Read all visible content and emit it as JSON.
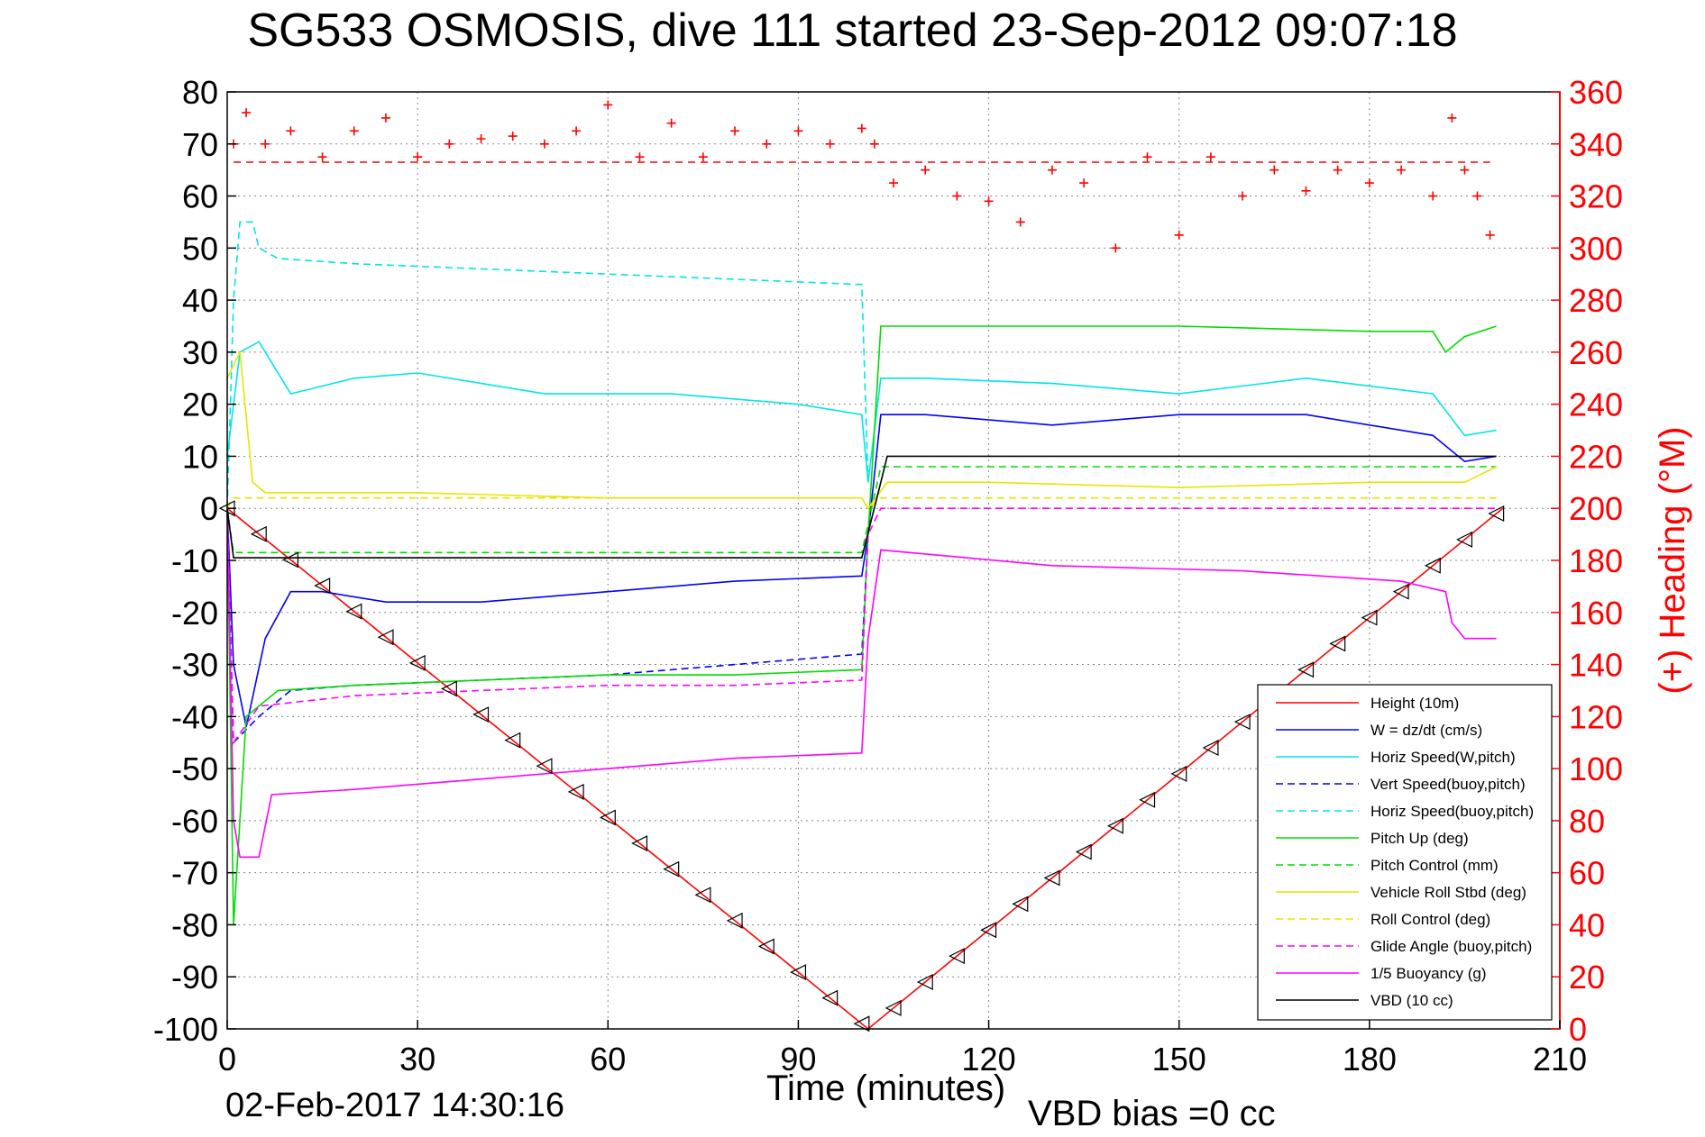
{
  "chart_data": {
    "type": "line",
    "title": "SG533 OSMOSIS, dive 111 started 23-Sep-2012 09:07:18",
    "xlabel": "Time (minutes)",
    "ylabel_right": "(+) Heading (°M)",
    "footer_date": "02-Feb-2017 14:30:16",
    "footer_vbd": "VBD bias =0 cc",
    "xlim": [
      0,
      210
    ],
    "ylim": [
      -100,
      80
    ],
    "y2lim": [
      0,
      360
    ],
    "xticks": [
      0,
      30,
      60,
      90,
      120,
      150,
      180,
      210
    ],
    "yticks": [
      -100,
      -90,
      -80,
      -70,
      -60,
      -50,
      -40,
      -30,
      -20,
      -10,
      0,
      10,
      20,
      30,
      40,
      50,
      60,
      70,
      80
    ],
    "y2ticks": [
      0,
      20,
      40,
      60,
      80,
      100,
      120,
      140,
      160,
      180,
      200,
      220,
      240,
      260,
      280,
      300,
      320,
      340,
      360
    ],
    "grid": true,
    "legend_position": "lower-right",
    "series": [
      {
        "name": "Height (10m)",
        "color": "#ff0000",
        "style": "solid",
        "x": [
          0,
          101,
          201
        ],
        "y": [
          0,
          -100,
          0
        ]
      },
      {
        "name": "W = dz/dt (cm/s)",
        "color": "#0000ff",
        "style": "solid",
        "x": [
          0,
          1,
          3,
          6,
          10,
          15,
          25,
          40,
          60,
          80,
          100,
          101,
          103,
          110,
          130,
          150,
          170,
          190,
          195,
          200
        ],
        "y": [
          0,
          -30,
          -42,
          -25,
          -16,
          -16,
          -18,
          -18,
          -16,
          -14,
          -13,
          -5,
          18,
          18,
          16,
          18,
          18,
          14,
          9,
          10
        ]
      },
      {
        "name": "Horiz Speed(W,pitch)",
        "color": "#00e5e5",
        "style": "solid",
        "x": [
          0,
          2,
          5,
          10,
          20,
          30,
          50,
          70,
          90,
          100,
          101,
          103,
          110,
          130,
          150,
          170,
          190,
          195,
          200
        ],
        "y": [
          10,
          30,
          32,
          22,
          25,
          26,
          22,
          22,
          20,
          18,
          5,
          25,
          25,
          24,
          22,
          25,
          22,
          14,
          15
        ]
      },
      {
        "name": "Vert Speed(buoy,pitch)",
        "color": "#0000ff",
        "style": "dashed",
        "x": [
          0,
          1,
          5,
          10,
          20,
          40,
          60,
          80,
          100,
          101
        ],
        "y": [
          0,
          -45,
          -40,
          -35,
          -34,
          -33,
          -32,
          -30,
          -28,
          -5
        ]
      },
      {
        "name": "Horiz Speed(buoy,pitch)",
        "color": "#00e5e5",
        "style": "dashed",
        "x": [
          0,
          1,
          2,
          4,
          5,
          8,
          20,
          40,
          60,
          80,
          100,
          101
        ],
        "y": [
          0,
          40,
          55,
          55,
          50,
          48,
          47,
          46,
          45,
          44,
          43,
          5
        ]
      },
      {
        "name": "Pitch Up (deg)",
        "color": "#00dd00",
        "style": "solid",
        "x": [
          0,
          1,
          3,
          8,
          20,
          40,
          60,
          80,
          100,
          101,
          103,
          120,
          150,
          180,
          190,
          192,
          195,
          200
        ],
        "y": [
          0,
          -80,
          -40,
          -35,
          -34,
          -33,
          -32,
          -32,
          -31,
          -5,
          35,
          35,
          35,
          34,
          34,
          30,
          33,
          35
        ]
      },
      {
        "name": "Pitch Control (mm)",
        "color": "#00dd00",
        "style": "dashed",
        "x": [
          0,
          1,
          100,
          103,
          200
        ],
        "y": [
          0,
          -8.5,
          -8.5,
          8,
          8
        ]
      },
      {
        "name": "Vehicle Roll Stbd (deg)",
        "color": "#e5e500",
        "style": "solid",
        "x": [
          0,
          2,
          4,
          6,
          12,
          30,
          60,
          90,
          100,
          101,
          104,
          120,
          150,
          180,
          195,
          200
        ],
        "y": [
          25,
          30,
          5,
          3,
          3,
          3,
          2,
          2,
          2,
          0,
          5,
          5,
          4,
          5,
          5,
          8
        ]
      },
      {
        "name": "Roll Control (deg)",
        "color": "#e5e500",
        "style": "dashed",
        "x": [
          0,
          1,
          5,
          100,
          101,
          103,
          200
        ],
        "y": [
          0,
          2,
          2,
          2,
          0,
          2,
          2
        ]
      },
      {
        "name": "Glide Angle (buoy,pitch)",
        "color": "#ff00ff",
        "style": "dashed",
        "x": [
          0,
          1,
          5,
          20,
          40,
          60,
          80,
          100,
          101,
          103,
          200
        ],
        "y": [
          0,
          -45,
          -38,
          -36,
          -35,
          -34,
          -34,
          -33,
          -5,
          0,
          0
        ]
      },
      {
        "name": "1/5 Buoyancy (g)",
        "color": "#ff00ff",
        "style": "solid",
        "x": [
          0,
          1,
          2,
          5,
          7,
          20,
          40,
          60,
          80,
          100,
          101,
          103,
          130,
          160,
          185,
          192,
          193,
          195,
          200
        ],
        "y": [
          0,
          -60,
          -67,
          -67,
          -55,
          -54,
          -52,
          -50,
          -48,
          -47,
          -25,
          -8,
          -11,
          -12,
          -14,
          -16,
          -22,
          -25,
          -25
        ]
      },
      {
        "name": "VBD (10 cc)",
        "color": "#000000",
        "style": "solid",
        "x": [
          0,
          1,
          100,
          103,
          104,
          200
        ],
        "y": [
          0,
          -9.5,
          -9.5,
          5,
          10,
          10
        ]
      }
    ],
    "heading": {
      "color": "#ff0000",
      "reference": 333,
      "x": [
        1,
        3,
        6,
        10,
        15,
        20,
        25,
        30,
        35,
        40,
        45,
        50,
        55,
        60,
        65,
        70,
        75,
        80,
        85,
        90,
        95,
        100,
        102,
        105,
        110,
        115,
        120,
        125,
        130,
        135,
        140,
        145,
        150,
        155,
        160,
        165,
        170,
        175,
        180,
        185,
        190,
        193,
        195,
        197,
        199
      ],
      "y": [
        340,
        352,
        340,
        345,
        335,
        345,
        350,
        335,
        340,
        342,
        343,
        340,
        345,
        355,
        335,
        348,
        335,
        345,
        340,
        345,
        340,
        346,
        340,
        325,
        330,
        320,
        318,
        310,
        330,
        325,
        300,
        335,
        305,
        335,
        320,
        330,
        322,
        330,
        325,
        330,
        320,
        350,
        330,
        320,
        305
      ]
    }
  }
}
